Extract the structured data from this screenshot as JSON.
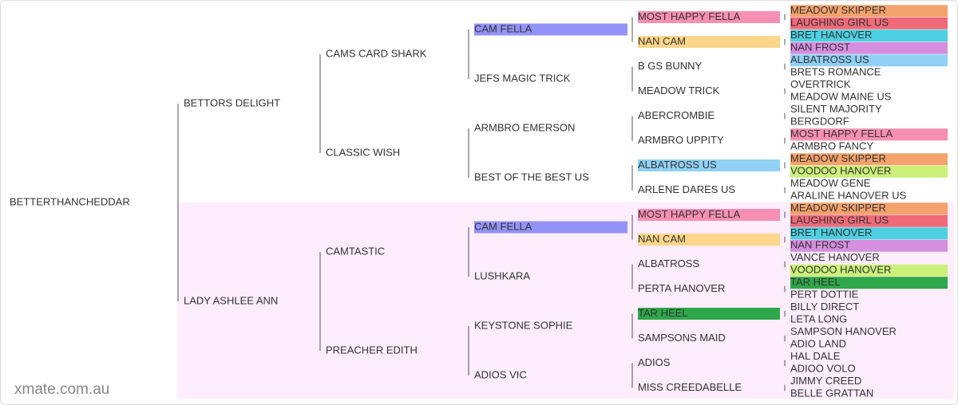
{
  "generations": [
    [
      {
        "name": "BETTERTHANCHEDDAR"
      }
    ],
    [
      {
        "name": "BETTORS DELIGHT"
      },
      {
        "name": "LADY ASHLEE ANN"
      }
    ],
    [
      {
        "name": "CAMS CARD SHARK"
      },
      {
        "name": "CLASSIC WISH"
      },
      {
        "name": "CAMTASTIC"
      },
      {
        "name": "PREACHER EDITH"
      }
    ],
    [
      {
        "name": "CAM FELLA",
        "color": "#9393f7"
      },
      {
        "name": "JEFS MAGIC TRICK"
      },
      {
        "name": "ARMBRO EMERSON"
      },
      {
        "name": "BEST OF THE BEST US"
      },
      {
        "name": "CAM FELLA",
        "color": "#9393f7"
      },
      {
        "name": "LUSHKARA"
      },
      {
        "name": "KEYSTONE SOPHIE"
      },
      {
        "name": "ADIOS VIC"
      }
    ],
    [
      {
        "name": "MOST HAPPY FELLA",
        "color": "#f78fb3"
      },
      {
        "name": "NAN CAM",
        "color": "#fcd68a"
      },
      {
        "name": "B GS BUNNY"
      },
      {
        "name": "MEADOW TRICK"
      },
      {
        "name": "ABERCROMBIE"
      },
      {
        "name": "ARMBRO UPPITY"
      },
      {
        "name": "ALBATROSS US",
        "color": "#90d0f5"
      },
      {
        "name": "ARLENE DARES US"
      },
      {
        "name": "MOST HAPPY FELLA",
        "color": "#f78fb3"
      },
      {
        "name": "NAN CAM",
        "color": "#fcd68a"
      },
      {
        "name": "ALBATROSS"
      },
      {
        "name": "PERTA HANOVER"
      },
      {
        "name": "TAR HEEL",
        "color": "#2ea84a"
      },
      {
        "name": "SAMPSONS MAID"
      },
      {
        "name": "ADIOS"
      },
      {
        "name": "MISS CREEDABELLE"
      }
    ],
    [
      {
        "name": "MEADOW SKIPPER",
        "color": "#f4a26c"
      },
      {
        "name": "LAUGHING GIRL US",
        "color": "#f06b7a"
      },
      {
        "name": "BRET HANOVER",
        "color": "#4dd0e1"
      },
      {
        "name": "NAN FROST",
        "color": "#d68fdf"
      },
      {
        "name": "ALBATROSS US",
        "color": "#90d0f5"
      },
      {
        "name": "BRETS ROMANCE"
      },
      {
        "name": "OVERTRICK"
      },
      {
        "name": "MEADOW MAINE US"
      },
      {
        "name": "SILENT MAJORITY"
      },
      {
        "name": "BERGDORF"
      },
      {
        "name": "MOST HAPPY FELLA",
        "color": "#f78fb3"
      },
      {
        "name": "ARMBRO FANCY"
      },
      {
        "name": "MEADOW SKIPPER",
        "color": "#f4a26c"
      },
      {
        "name": "VOODOO HANOVER",
        "color": "#ccf07a"
      },
      {
        "name": "MEADOW GENE"
      },
      {
        "name": "ARALINE HANOVER US"
      },
      {
        "name": "MEADOW SKIPPER",
        "color": "#f4a26c"
      },
      {
        "name": "LAUGHING GIRL US",
        "color": "#f06b7a"
      },
      {
        "name": "BRET HANOVER",
        "color": "#4dd0e1"
      },
      {
        "name": "NAN FROST",
        "color": "#d68fdf"
      },
      {
        "name": "VANCE HANOVER"
      },
      {
        "name": "VOODOO HANOVER",
        "color": "#ccf07a"
      },
      {
        "name": "TAR HEEL",
        "color": "#2ea84a"
      },
      {
        "name": "PERT DOTTIE"
      },
      {
        "name": "BILLY DIRECT"
      },
      {
        "name": "LETA LONG"
      },
      {
        "name": "SAMPSON HANOVER"
      },
      {
        "name": "ADIO LAND"
      },
      {
        "name": "HAL DALE"
      },
      {
        "name": "ADIOO VOLO"
      },
      {
        "name": "JIMMY CREED"
      },
      {
        "name": "BELLE GRATTAN"
      }
    ]
  ],
  "watermark": "xmate.com.au"
}
